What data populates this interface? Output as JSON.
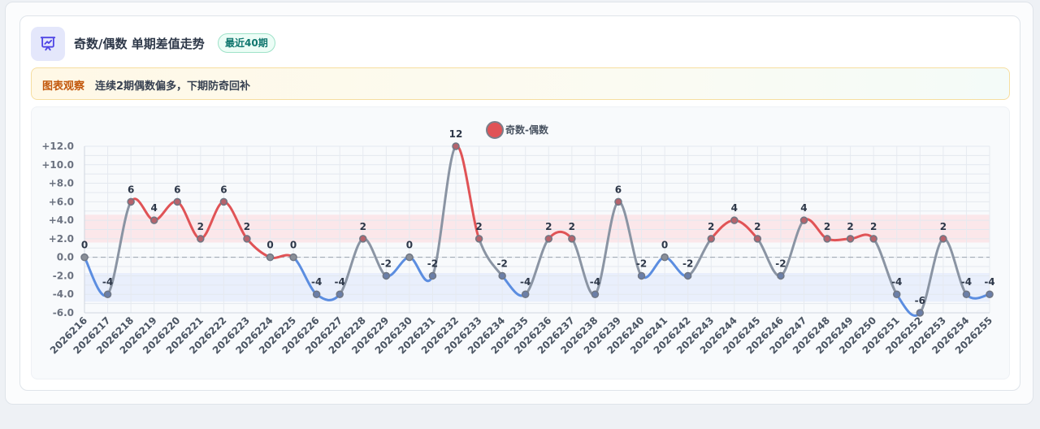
{
  "header": {
    "title": "奇数/偶数 单期差值走势",
    "badge": "最近40期",
    "icon": "presentation-chart-icon"
  },
  "insight": {
    "tag": "图表观察",
    "text": "连续2期偶数偏多，下期防奇回补"
  },
  "colors": {
    "positive": "#e05356",
    "negative": "#5b8de0",
    "neutral": "#8a94a3",
    "positive_band": "#fbe3e6",
    "negative_band": "#e6ecfb"
  },
  "chart_data": {
    "type": "line",
    "title": "",
    "xlabel": "",
    "ylabel": "",
    "legend": {
      "label": "奇数-偶数",
      "position": "top-center"
    },
    "ylim": [
      -6,
      12
    ],
    "y_ticks": [
      "+12.0",
      "+10.0",
      "+8.0",
      "+6.0",
      "+4.0",
      "+2.0",
      "0.0",
      "-2.0",
      "-4.0",
      "-6.0"
    ],
    "grid": true,
    "bands": [
      {
        "from": 1.6,
        "to": 4.6,
        "tone": "positive"
      },
      {
        "from": -4.8,
        "to": -1.7,
        "tone": "negative"
      }
    ],
    "categories": [
      "2026216",
      "2026217",
      "2026218",
      "2026219",
      "2026220",
      "2026221",
      "2026222",
      "2026223",
      "2026224",
      "2026225",
      "2026226",
      "2026227",
      "2026228",
      "2026229",
      "2026230",
      "2026231",
      "2026232",
      "2026233",
      "2026234",
      "2026235",
      "2026236",
      "2026237",
      "2026238",
      "2026239",
      "2026240",
      "2026241",
      "2026242",
      "2026243",
      "2026244",
      "2026245",
      "2026246",
      "2026247",
      "2026248",
      "2026249",
      "2026250",
      "2026251",
      "2026252",
      "2026253",
      "2026254",
      "2026255"
    ],
    "series": [
      {
        "name": "奇数-偶数",
        "values": [
          0,
          -4,
          6,
          4,
          6,
          2,
          6,
          2,
          0,
          0,
          -4,
          -4,
          2,
          -2,
          0,
          -2,
          12,
          2,
          -2,
          -4,
          2,
          2,
          -4,
          6,
          -2,
          0,
          -2,
          2,
          4,
          2,
          -2,
          4,
          2,
          2,
          2,
          -4,
          -6,
          2,
          -4,
          -4
        ],
        "labels": [
          "0",
          "-4",
          "6",
          "4",
          "6",
          "2",
          "6",
          "2",
          "0",
          "0",
          "-4",
          "-4",
          "2",
          "-2",
          "0",
          "-2",
          "12",
          "2",
          "-2",
          "-4",
          "2",
          "2",
          "-4",
          "6",
          "-2",
          "0",
          "-2",
          "2",
          "4",
          "2",
          "-2",
          "4",
          "2",
          "2",
          "2",
          "-4",
          "-6",
          "2",
          "-4",
          "-4"
        ]
      }
    ]
  }
}
